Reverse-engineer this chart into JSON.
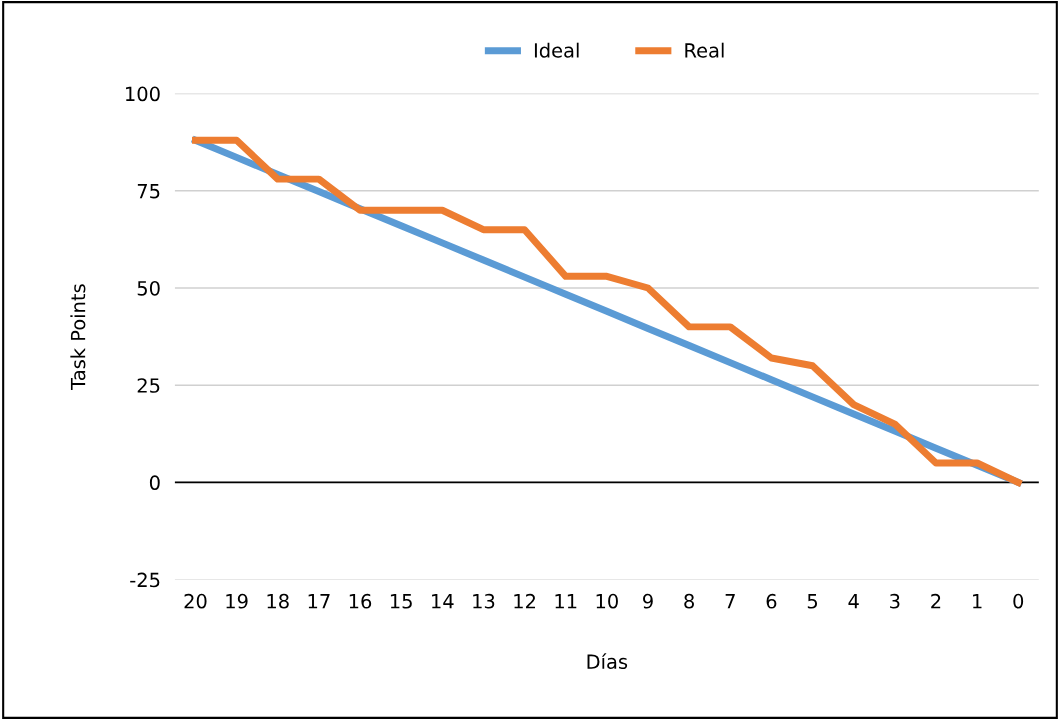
{
  "chart_data": {
    "type": "line",
    "xlabel": "Días",
    "ylabel": "Task Points",
    "categories": [
      "20",
      "19",
      "18",
      "17",
      "16",
      "15",
      "14",
      "13",
      "12",
      "11",
      "10",
      "9",
      "8",
      "7",
      "6",
      "5",
      "4",
      "3",
      "2",
      "1",
      "0"
    ],
    "series": [
      {
        "name": "Ideal",
        "color": "#5b9bd5",
        "values": [
          88,
          83.6,
          79.2,
          74.8,
          70.4,
          66,
          61.6,
          57.2,
          52.8,
          48.4,
          44,
          39.6,
          35.2,
          30.8,
          26.4,
          22,
          17.6,
          13.2,
          8.8,
          4.4,
          0
        ]
      },
      {
        "name": "Real",
        "color": "#ed7d31",
        "values": [
          88,
          88,
          78,
          78,
          70,
          70,
          70,
          65,
          65,
          53,
          53,
          50,
          40,
          40,
          32,
          30,
          20,
          15,
          5,
          5,
          0
        ]
      }
    ],
    "ylim": [
      -25,
      100
    ],
    "yticks": [
      -25,
      0,
      25,
      50,
      75,
      100
    ],
    "ref_lines": [
      {
        "axis": "y",
        "value": 0,
        "color": "#000000"
      }
    ],
    "grid": "y",
    "legend": "top",
    "marker": "none",
    "line_style": "solid"
  }
}
